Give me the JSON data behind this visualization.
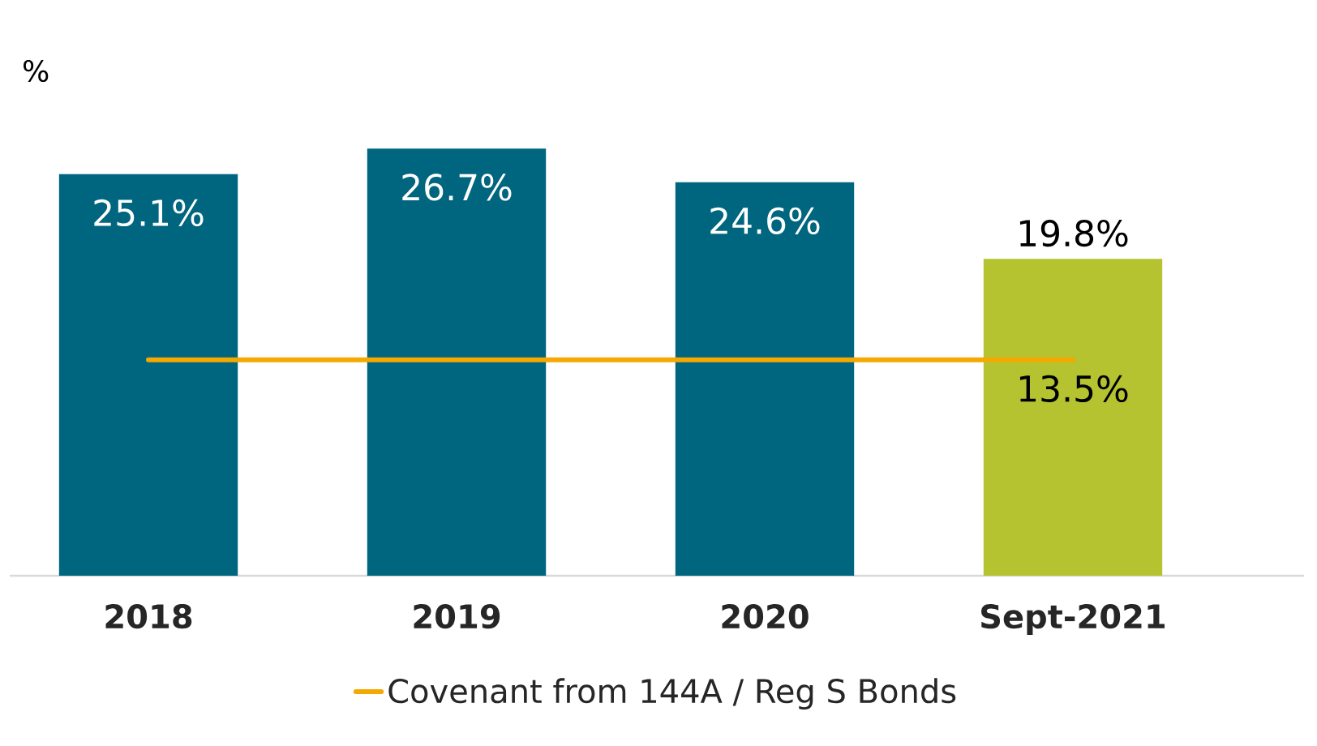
{
  "chart_data": {
    "type": "bar",
    "ylabel": "%",
    "categories": [
      "2018",
      "2019",
      "2020",
      "Sept-2021"
    ],
    "legend": "bottom",
    "marker": "none",
    "tick_labels": "x",
    "series": [
      {
        "colors": [
          "#00667f",
          "#00667f",
          "#00667f",
          "#b5c330"
        ],
        "values": [
          25.1,
          26.7,
          24.6,
          19.8
        ],
        "value_labels": [
          "25.1%",
          "26.7%",
          "24.6%",
          "19.8%"
        ]
      },
      {
        "type": "line",
        "name": "Covenant from 144A / Reg S Bonds",
        "color": "#f5a800",
        "values": [
          13.5,
          13.5,
          13.5,
          13.5
        ],
        "value_labels": [
          null,
          null,
          null,
          "13.5%"
        ]
      }
    ]
  }
}
